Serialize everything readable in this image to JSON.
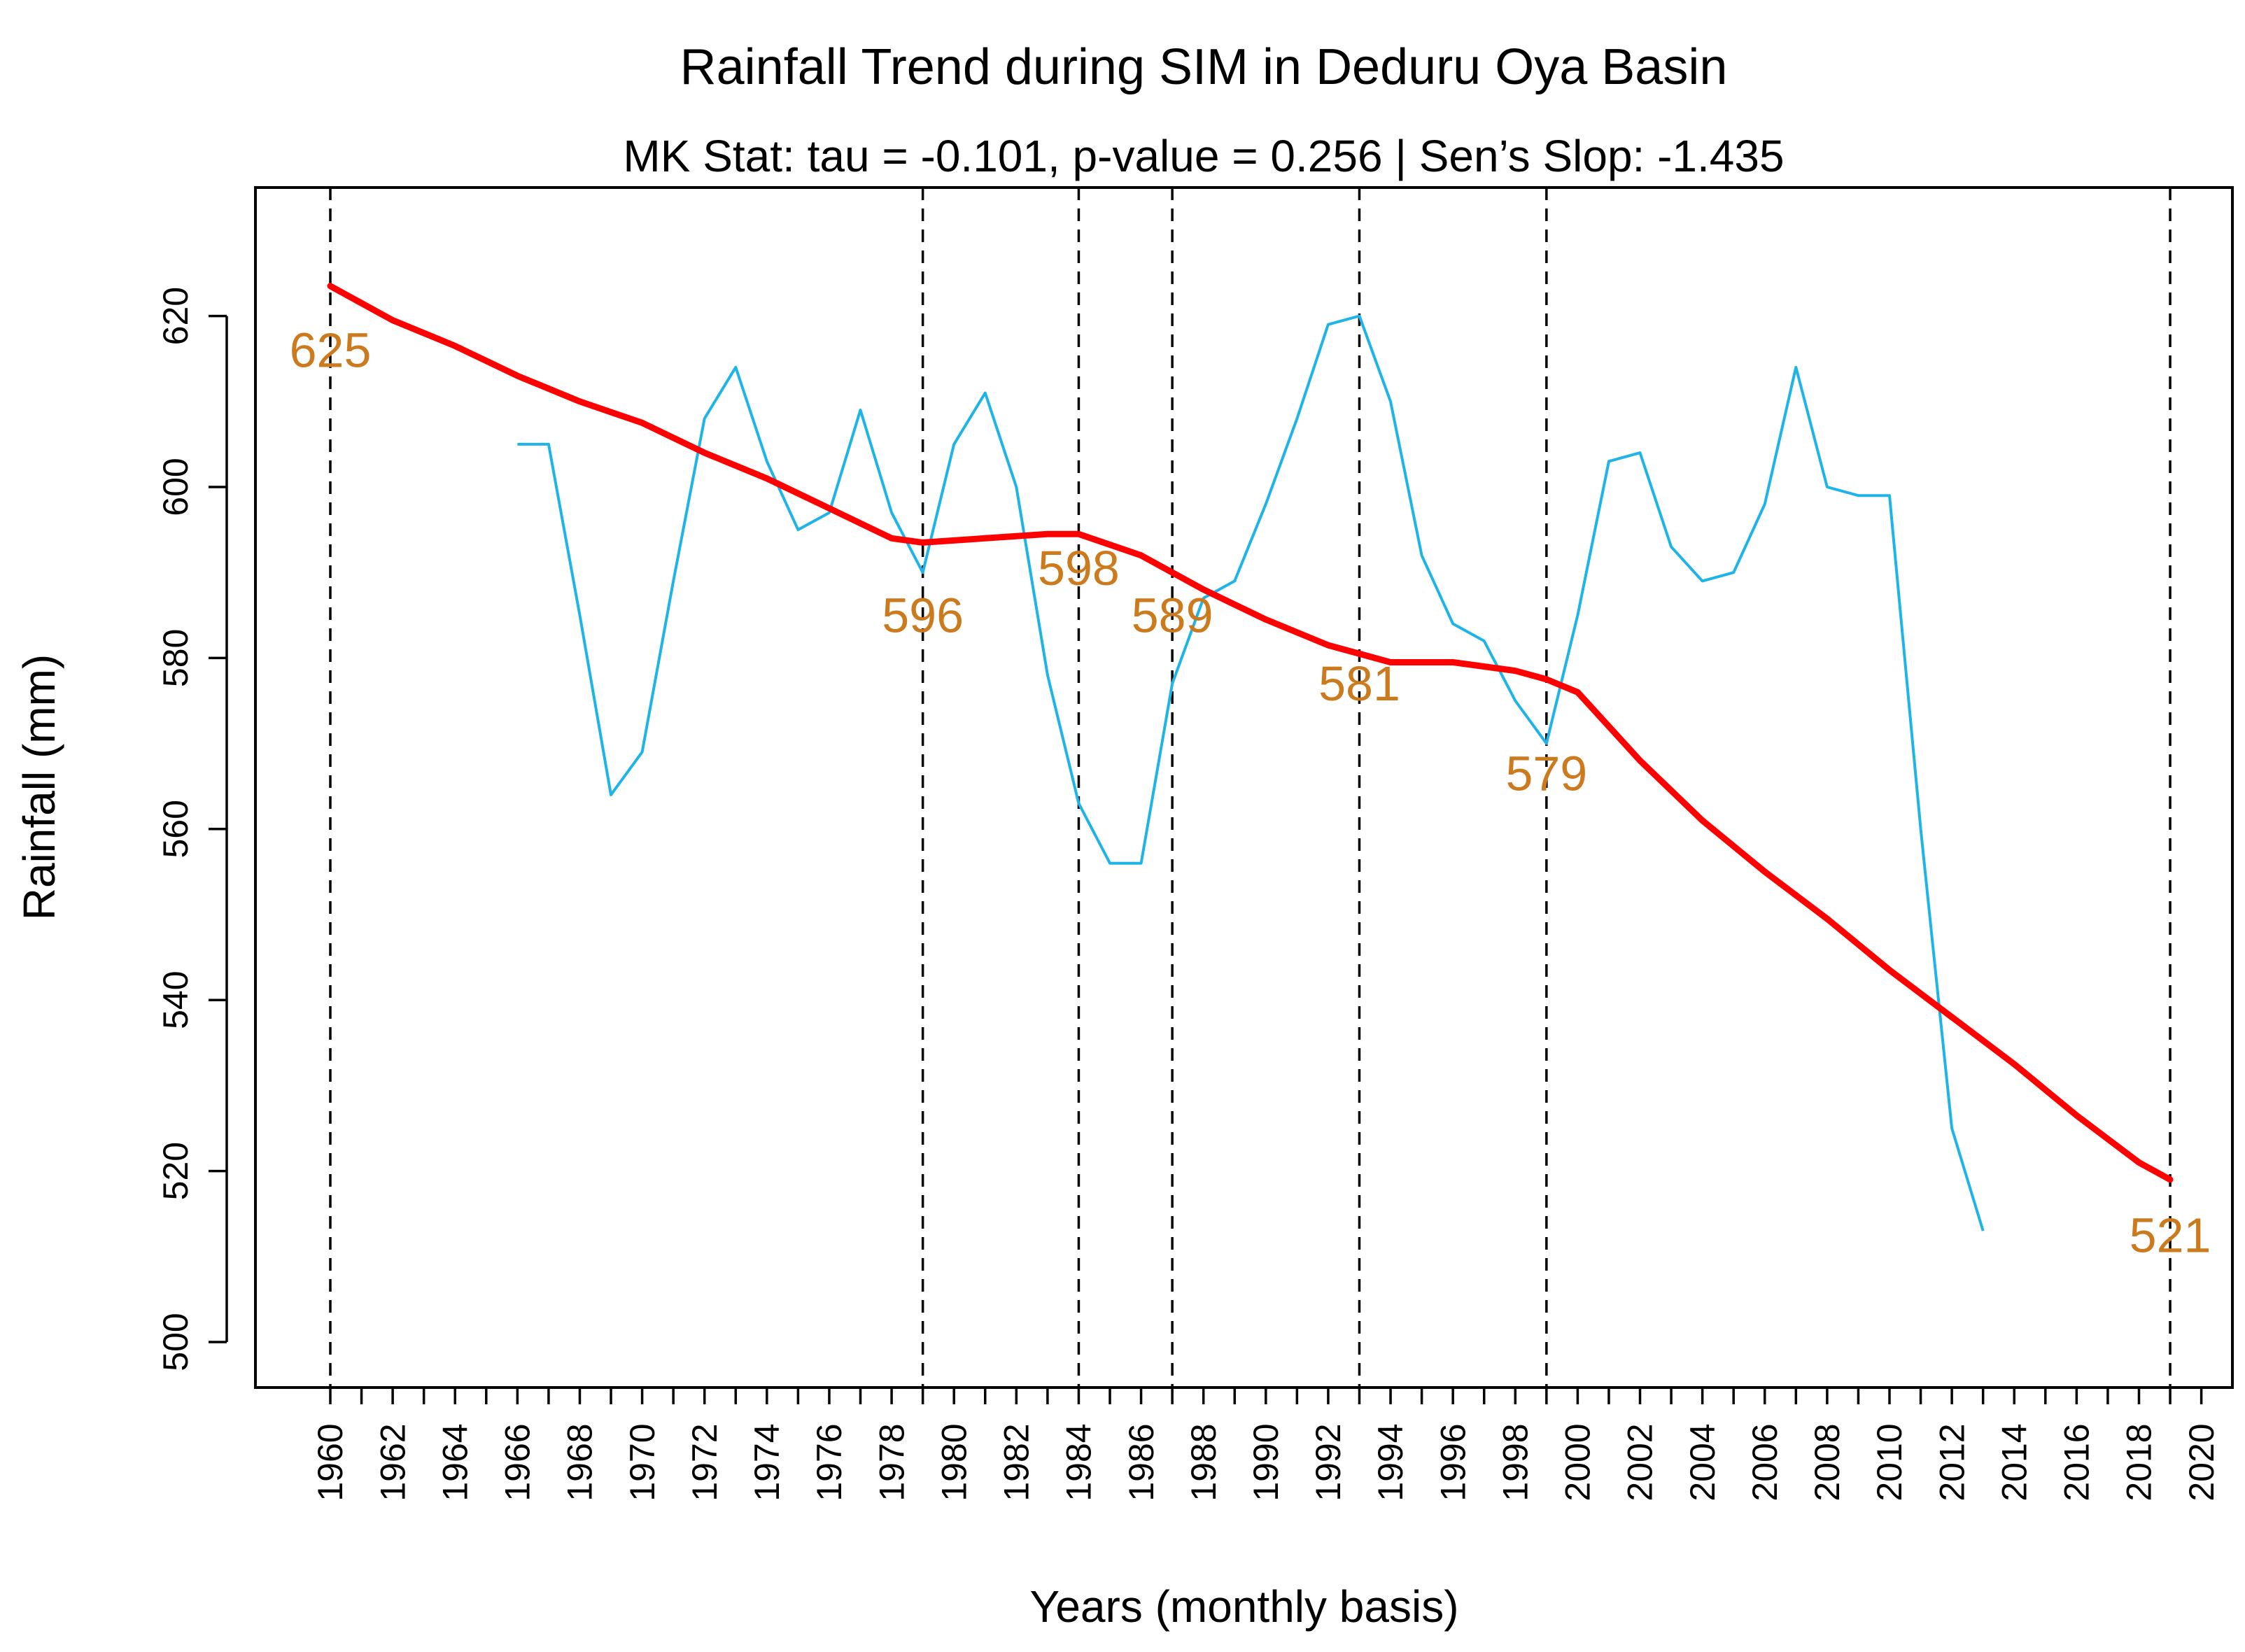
{
  "chart_data": {
    "type": "line",
    "title": "Rainfall Trend during SIM in Deduru Oya Basin",
    "subtitle": "MK Stat: tau = -0.101, p-value = 0.256 | Sen’s Slop: -1.435",
    "xlabel": "Years (monthly basis)",
    "ylabel": "Rainfall (mm)",
    "xlim": [
      1960,
      2020
    ],
    "ylim": [
      500,
      620
    ],
    "y_ticks": [
      500,
      520,
      540,
      560,
      580,
      600,
      620
    ],
    "x_tick_labels": [
      "1960",
      "1962",
      "1964",
      "1966",
      "1968",
      "1970",
      "1972",
      "1974",
      "1976",
      "1978",
      "1980",
      "1982",
      "1984",
      "1986",
      "1988",
      "1990",
      "1992",
      "1994",
      "1996",
      "1998",
      "2000",
      "2002",
      "2004",
      "2006",
      "2008",
      "2010",
      "2012",
      "2014",
      "2016",
      "2018",
      "2020"
    ],
    "grid": false,
    "colors": {
      "observed": "#1eb4e8",
      "trend": "#ff0000",
      "annotation": "#cc7a1e",
      "breakline": "#000000"
    },
    "series": [
      {
        "name": "Rainfall",
        "x": [
          1966,
          1967,
          1968,
          1969,
          1970,
          1971,
          1972,
          1973,
          1974,
          1975,
          1976,
          1977,
          1978,
          1979,
          1980,
          1981,
          1982,
          1983,
          1984,
          1985,
          1986,
          1987,
          1988,
          1989,
          1990,
          1991,
          1992,
          1993,
          1994,
          1995,
          1996,
          1997,
          1998,
          1999,
          2000,
          2001,
          2002,
          2003,
          2004,
          2005,
          2006,
          2007,
          2008,
          2009,
          2010,
          2011,
          2012,
          2013
        ],
        "values": [
          605,
          605,
          585,
          564,
          569,
          589,
          608,
          614,
          603,
          595,
          597,
          609,
          597,
          590,
          605,
          611,
          600,
          578,
          563,
          556,
          556,
          577,
          587,
          589,
          598,
          608,
          619,
          620,
          610,
          592,
          584,
          582,
          575,
          570,
          585,
          603,
          604,
          593,
          589,
          590,
          598,
          614,
          600,
          599,
          599,
          560,
          525,
          513
        ]
      },
      {
        "name": "Trend",
        "x": [
          1960,
          1962,
          1964,
          1966,
          1968,
          1970,
          1972,
          1974,
          1976,
          1978,
          1979,
          1981,
          1983,
          1984,
          1986,
          1988,
          1990,
          1992,
          1994,
          1996,
          1998,
          1999,
          2000,
          2002,
          2004,
          2006,
          2008,
          2010,
          2012,
          2014,
          2016,
          2018,
          2019
        ],
        "values": [
          623.5,
          619.5,
          616.5,
          613,
          610,
          607.5,
          604,
          601,
          597.5,
          594,
          593.5,
          594,
          594.5,
          594.5,
          592,
          588,
          584.5,
          581.5,
          579.5,
          579.5,
          578.5,
          577.5,
          576,
          568,
          561,
          555,
          549.5,
          543.5,
          538,
          532.5,
          526.5,
          521,
          519
        ]
      }
    ],
    "breakpoints": [
      1960,
      1979,
      1984,
      1987,
      1993,
      1999,
      2019
    ],
    "annotations": [
      {
        "text": "625",
        "x": 1960,
        "y": 616
      },
      {
        "text": "596",
        "x": 1979,
        "y": 585
      },
      {
        "text": "598",
        "x": 1984,
        "y": 590.5
      },
      {
        "text": "589",
        "x": 1987,
        "y": 585
      },
      {
        "text": "581",
        "x": 1993,
        "y": 577
      },
      {
        "text": "579",
        "x": 1999,
        "y": 566.5
      },
      {
        "text": "521",
        "x": 2019,
        "y": 512.5
      }
    ]
  }
}
